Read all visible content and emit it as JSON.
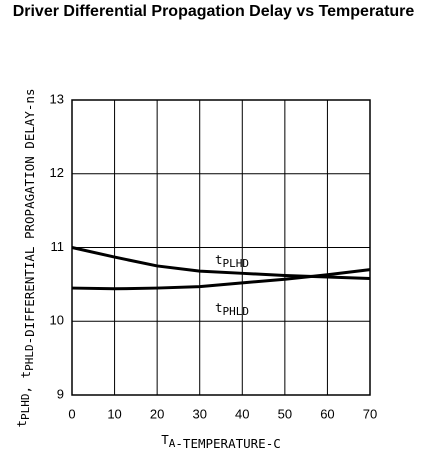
{
  "chart_data": {
    "type": "line",
    "title": "Driver Differential Propagation Delay vs Temperature",
    "x_label": "TA-TEMPERATURE-C",
    "y_label": "tPLHD, tPHLD-DIFFERENTIAL PROPAGATION DELAY-ns",
    "x": [
      0,
      10,
      20,
      30,
      40,
      50,
      60,
      70
    ],
    "series": [
      {
        "name": "tPLHD",
        "color": "#000000",
        "values": [
          11.0,
          10.87,
          10.75,
          10.68,
          10.65,
          10.62,
          10.6,
          10.58
        ]
      },
      {
        "name": "tPHLD",
        "color": "#000000",
        "values": [
          10.45,
          10.44,
          10.45,
          10.47,
          10.52,
          10.57,
          10.63,
          10.7
        ]
      }
    ],
    "xlim": [
      0,
      70
    ],
    "xticks": [
      0,
      10,
      20,
      30,
      40,
      50,
      60,
      70
    ],
    "ylim": [
      9,
      13
    ],
    "yticks": [
      9,
      10,
      11,
      12,
      13
    ],
    "grid": true
  }
}
